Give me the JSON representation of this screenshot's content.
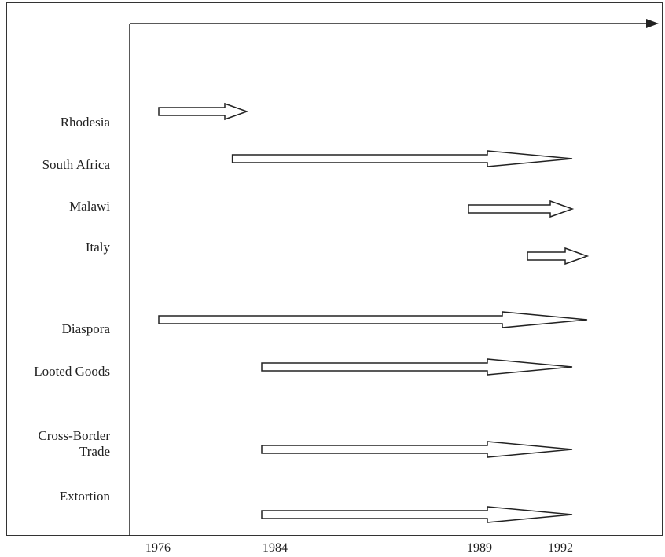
{
  "rows": [
    {
      "label": "Rhodesia",
      "start": 1976,
      "end": 1982
    },
    {
      "label": "South Africa",
      "start": 1981,
      "end": 1992
    },
    {
      "label": "Malawi",
      "start": 1989.5,
      "end": 1992
    },
    {
      "label": "Italy",
      "start": 1990.5,
      "end": 1993
    },
    {
      "label": "Diaspora",
      "start": 1976,
      "end": 1993
    },
    {
      "label": "Looted Goods",
      "start": 1983,
      "end": 1992
    },
    {
      "label": "Cross-Border Trade",
      "label_lines": [
        "Cross-Border",
        "Trade"
      ],
      "start": 1983,
      "end": 1992
    },
    {
      "label": "Extortion",
      "start": 1983,
      "end": 1992
    }
  ],
  "years": [
    "1976",
    "1984",
    "1989",
    "1992"
  ],
  "colors": {
    "line": "#222222",
    "arrow_fill": "#ffffff"
  }
}
